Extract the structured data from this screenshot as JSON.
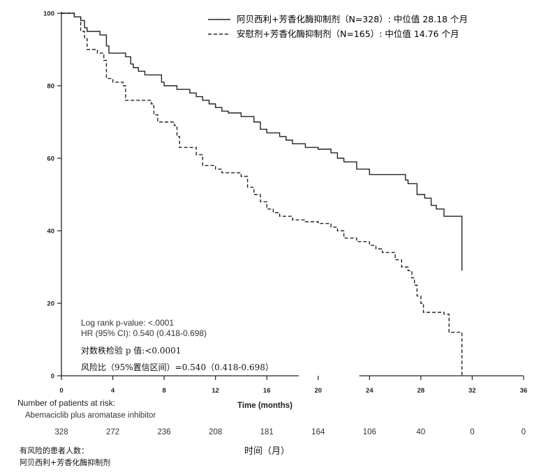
{
  "chart_data": {
    "type": "line",
    "subtype": "kaplan-meier",
    "title": "",
    "xlabel": "Time (months)",
    "xlabel_cn": "时间（月）",
    "ylabel": "",
    "xlim": [
      0,
      36
    ],
    "ylim": [
      0,
      100
    ],
    "x_ticks": [
      0,
      4,
      8,
      12,
      16,
      20,
      24,
      28,
      32,
      36
    ],
    "y_ticks": [
      0,
      20,
      40,
      60,
      80,
      100
    ],
    "legend_position": "top-right",
    "series": [
      {
        "name": "阿贝西利+芳香化酶抑制剂（N=328）: 中位值 28.18 个月",
        "style": "solid",
        "color": "#222222",
        "points": [
          [
            0,
            100
          ],
          [
            0.8,
            100
          ],
          [
            1.0,
            99
          ],
          [
            1.5,
            98
          ],
          [
            1.8,
            96
          ],
          [
            2.0,
            95
          ],
          [
            3.0,
            94
          ],
          [
            3.5,
            91
          ],
          [
            3.7,
            89
          ],
          [
            4.0,
            89
          ],
          [
            5.0,
            88
          ],
          [
            5.4,
            86
          ],
          [
            5.6,
            85
          ],
          [
            6.0,
            84
          ],
          [
            6.5,
            83
          ],
          [
            7.0,
            83
          ],
          [
            7.5,
            83
          ],
          [
            7.8,
            81
          ],
          [
            8.0,
            80
          ],
          [
            9.0,
            79
          ],
          [
            10.0,
            78
          ],
          [
            10.5,
            77
          ],
          [
            11.0,
            76
          ],
          [
            11.5,
            75
          ],
          [
            12.0,
            74
          ],
          [
            12.5,
            73
          ],
          [
            13.0,
            72.5
          ],
          [
            14.0,
            71.5
          ],
          [
            15.0,
            70
          ],
          [
            15.5,
            68
          ],
          [
            16.0,
            67
          ],
          [
            17.0,
            66
          ],
          [
            17.5,
            65
          ],
          [
            18.0,
            64
          ],
          [
            19.0,
            63
          ],
          [
            20.0,
            62.5
          ],
          [
            21.0,
            61.5
          ],
          [
            21.5,
            60
          ],
          [
            22.0,
            59
          ],
          [
            23.0,
            57
          ],
          [
            24.0,
            55.5
          ],
          [
            25.0,
            55.5
          ],
          [
            26.0,
            55.5
          ],
          [
            26.8,
            54
          ],
          [
            27.0,
            53
          ],
          [
            27.7,
            50
          ],
          [
            28.3,
            49
          ],
          [
            28.8,
            47
          ],
          [
            29.2,
            46
          ],
          [
            29.8,
            44
          ],
          [
            31.2,
            44
          ],
          [
            31.2,
            29
          ]
        ]
      },
      {
        "name": "安慰剂+芳香化酶抑制剂（N=165）: 中位值 14.76 个月",
        "style": "dashed",
        "color": "#222222",
        "points": [
          [
            0,
            100
          ],
          [
            1.0,
            99
          ],
          [
            1.5,
            95
          ],
          [
            1.8,
            93
          ],
          [
            2.0,
            90
          ],
          [
            2.8,
            89
          ],
          [
            3.3,
            87
          ],
          [
            3.5,
            82
          ],
          [
            4.0,
            81
          ],
          [
            4.8,
            80
          ],
          [
            5.0,
            76
          ],
          [
            6.0,
            76
          ],
          [
            7.0,
            75
          ],
          [
            7.2,
            72
          ],
          [
            7.5,
            70
          ],
          [
            8.0,
            70
          ],
          [
            8.8,
            69
          ],
          [
            9.0,
            66
          ],
          [
            9.2,
            63
          ],
          [
            10.0,
            63
          ],
          [
            10.5,
            61
          ],
          [
            11.0,
            58
          ],
          [
            12.0,
            57
          ],
          [
            12.5,
            56
          ],
          [
            14.0,
            55
          ],
          [
            14.5,
            52
          ],
          [
            15.0,
            50
          ],
          [
            15.5,
            48
          ],
          [
            16.0,
            46
          ],
          [
            16.5,
            45
          ],
          [
            17.0,
            44
          ],
          [
            18.0,
            43
          ],
          [
            19.0,
            42.5
          ],
          [
            20.0,
            42
          ],
          [
            21.0,
            41
          ],
          [
            21.5,
            40
          ],
          [
            22.0,
            38
          ],
          [
            23.0,
            37
          ],
          [
            24.0,
            36
          ],
          [
            24.5,
            35
          ],
          [
            25.0,
            34
          ],
          [
            26.0,
            32
          ],
          [
            26.5,
            30
          ],
          [
            27.0,
            29
          ],
          [
            27.3,
            27
          ],
          [
            27.5,
            25
          ],
          [
            27.7,
            22
          ],
          [
            28.0,
            20
          ],
          [
            28.2,
            17.5
          ],
          [
            29.0,
            17.5
          ],
          [
            29.8,
            17
          ],
          [
            30.2,
            12
          ],
          [
            31.0,
            12
          ],
          [
            31.2,
            0
          ]
        ]
      }
    ],
    "legend_entries": [
      "阿贝西利+芳香化酶抑制剂（N=328）: 中位值 28.18 个月",
      "安慰剂+芳香化酶抑制剂（N=165）: 中位值 14.76 个月"
    ],
    "annotations": {
      "logrank": "Log rank p-value: <.0001",
      "hr": "HR (95% CI): 0.540 (0.418-0.698)",
      "logrank_cn": "对数秩检验 p 值:<0.0001",
      "hr_cn": "风险比（95%置信区间）=0.540（0.418-0.698）"
    },
    "risk_table": {
      "title": "Number of patients at risk:",
      "group": "Abemaciclib plus aromatase inhibitor",
      "title_cn": "有风险的患者人数：",
      "group_cn": "阿贝西利+芳香化酶抑制剂",
      "times": [
        0,
        4,
        8,
        12,
        16,
        20,
        24,
        28,
        32,
        36
      ],
      "counts": [
        "328",
        "272",
        "236",
        "208",
        "181",
        "164",
        "106",
        "40",
        "0",
        "0"
      ]
    }
  }
}
